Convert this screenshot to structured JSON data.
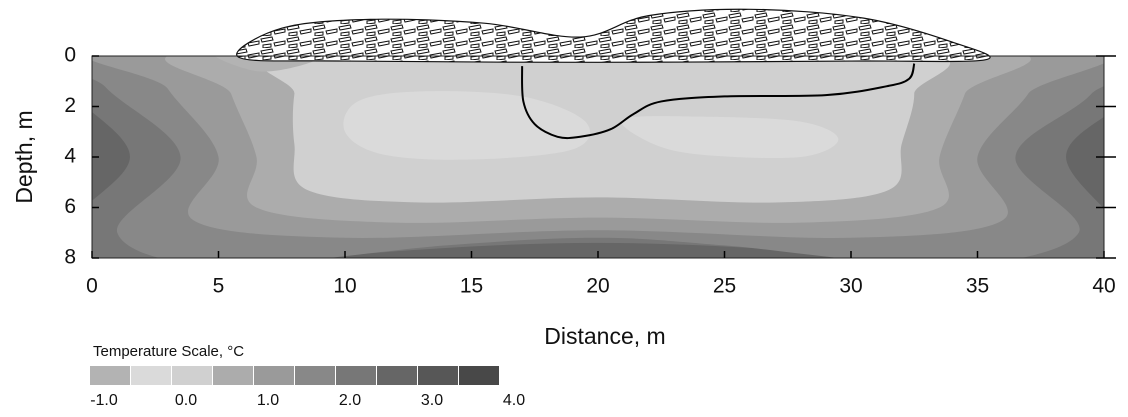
{
  "chart_data": {
    "type": "contour",
    "x_label": "Distance, m",
    "y_label": "Depth, m",
    "xlim": [
      0,
      40
    ],
    "xticks": [
      0,
      5,
      10,
      15,
      20,
      25,
      30,
      35,
      40
    ],
    "ylim": [
      0,
      8
    ],
    "yticks": [
      0,
      2,
      4,
      6,
      8
    ],
    "y_inverted": true,
    "colorbar": {
      "title": "Temperature Scale, °C",
      "levels": [
        -1,
        -0.5,
        0,
        0.5,
        1,
        1.5,
        2,
        2.5,
        3,
        3.5,
        4
      ],
      "colors": [
        "#b3b3b3",
        "#dadada",
        "#d0d0d0",
        "#acacac",
        "#9a9a9a",
        "#888888",
        "#777777",
        "#666666",
        "#575757",
        "#484848"
      ],
      "ticks": [
        {
          "value": -1,
          "label": "-1.0"
        },
        {
          "value": 0,
          "label": "0.0"
        },
        {
          "value": 1,
          "label": "1.0"
        },
        {
          "value": 2,
          "label": "2.0"
        },
        {
          "value": 3,
          "label": "3.0"
        },
        {
          "value": 4,
          "label": "4.0"
        }
      ]
    }
  }
}
